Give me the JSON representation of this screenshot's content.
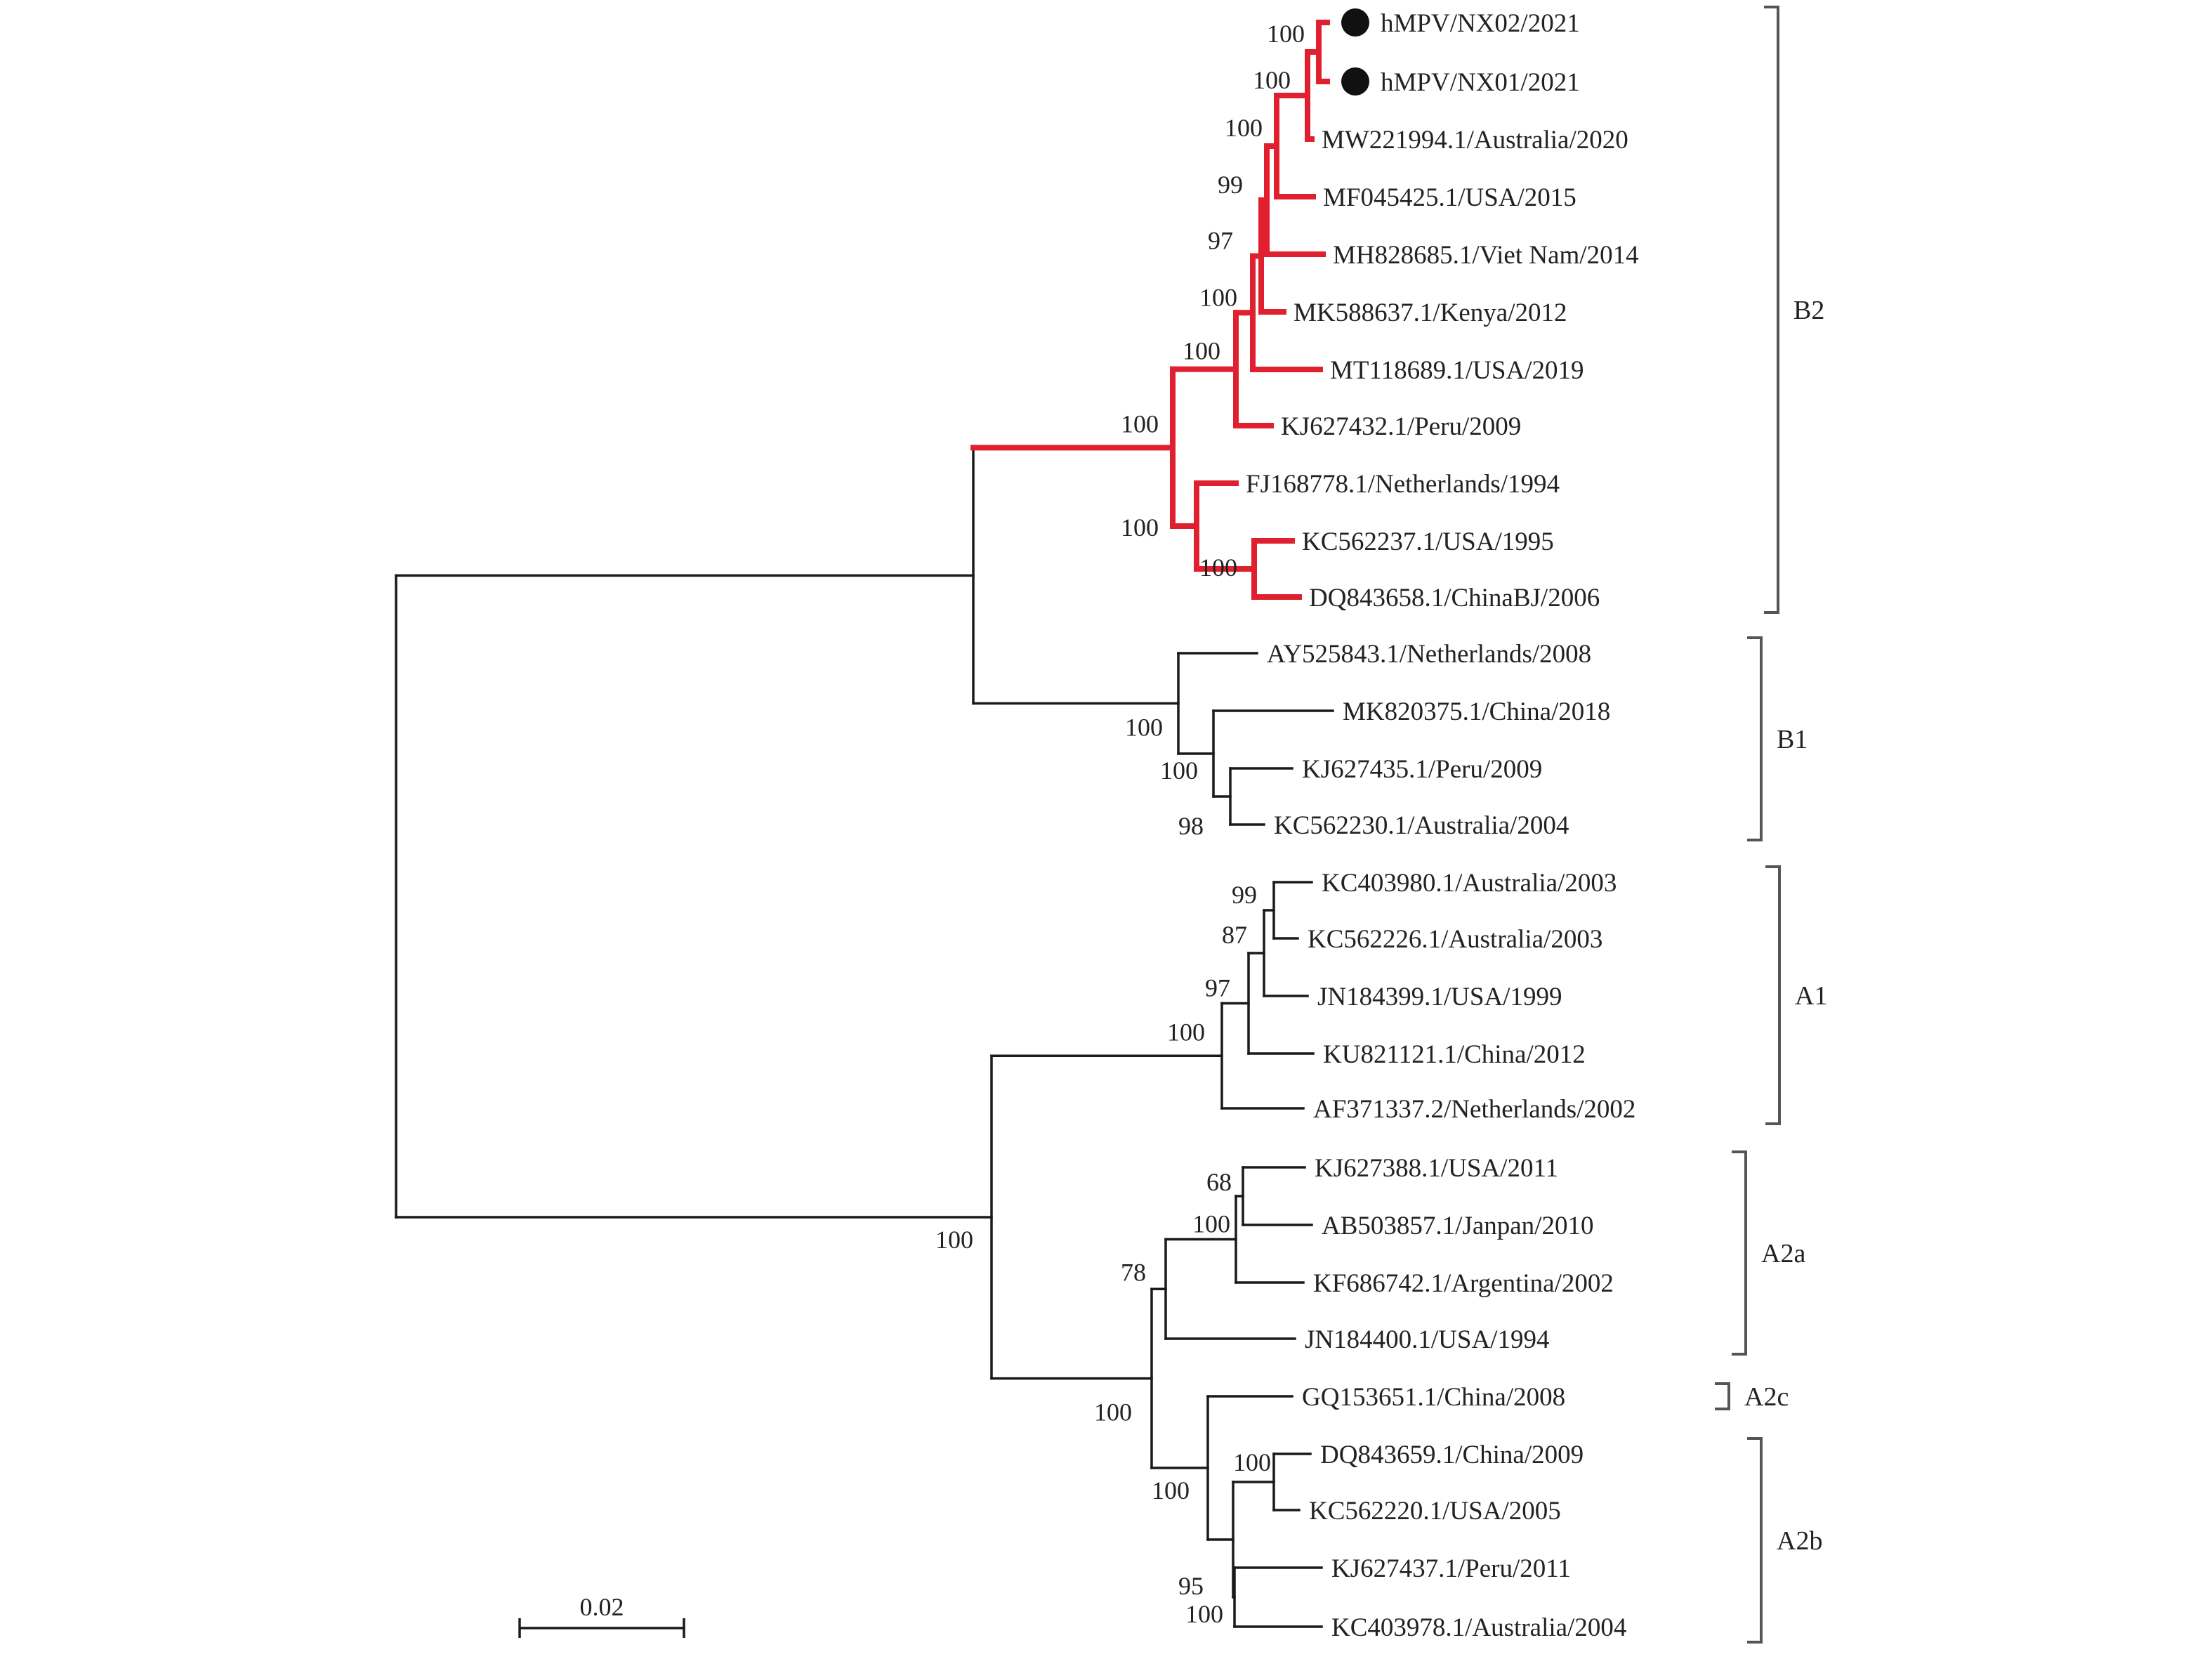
{
  "colors": {
    "highlight": "#e0202e",
    "branch": "#1a1a1a",
    "bracket": "#555555",
    "marker": "#111111"
  },
  "leaves": [
    {
      "label": "hMPV/NX02/2021",
      "marker": true,
      "highlight": true
    },
    {
      "label": "hMPV/NX01/2021",
      "marker": true,
      "highlight": true
    },
    {
      "label": "MW221994.1/Australia/2020",
      "highlight": true
    },
    {
      "label": "MF045425.1/USA/2015",
      "highlight": true
    },
    {
      "label": "MH828685.1/Viet Nam/2014",
      "highlight": true
    },
    {
      "label": "MK588637.1/Kenya/2012",
      "highlight": true
    },
    {
      "label": "MT118689.1/USA/2019",
      "highlight": true
    },
    {
      "label": "KJ627432.1/Peru/2009",
      "highlight": true
    },
    {
      "label": "FJ168778.1/Netherlands/1994",
      "highlight": true
    },
    {
      "label": "KC562237.1/USA/1995",
      "highlight": true
    },
    {
      "label": "DQ843658.1/ChinaBJ/2006",
      "highlight": true
    },
    {
      "label": "AY525843.1/Netherlands/2008"
    },
    {
      "label": "MK820375.1/China/2018"
    },
    {
      "label": "KJ627435.1/Peru/2009"
    },
    {
      "label": "KC562230.1/Australia/2004"
    },
    {
      "label": "KC403980.1/Australia/2003"
    },
    {
      "label": "KC562226.1/Australia/2003"
    },
    {
      "label": "JN184399.1/USA/1999"
    },
    {
      "label": "KU821121.1/China/2012"
    },
    {
      "label": "AF371337.2/Netherlands/2002"
    },
    {
      "label": "KJ627388.1/USA/2011"
    },
    {
      "label": "AB503857.1/Janpan/2010"
    },
    {
      "label": "KF686742.1/Argentina/2002"
    },
    {
      "label": "JN184400.1/USA/1994"
    },
    {
      "label": "GQ153651.1/China/2008"
    },
    {
      "label": "DQ843659.1/China/2009"
    },
    {
      "label": "KC562220.1/USA/2005"
    },
    {
      "label": "KJ627437.1/Peru/2011"
    },
    {
      "label": "KC403978.1/Australia/2004"
    }
  ],
  "support_values": [
    "100",
    "100",
    "100",
    "99",
    "97",
    "100",
    "100",
    "100",
    "100",
    "100",
    "100",
    "100",
    "98",
    "99",
    "87",
    "97",
    "100",
    "68",
    "100",
    "78",
    "100",
    "100",
    "100",
    "95",
    "100",
    "100"
  ],
  "clades": [
    {
      "label": "B2",
      "first": 0,
      "last": 10
    },
    {
      "label": "B1",
      "first": 11,
      "last": 14
    },
    {
      "label": "A1",
      "first": 15,
      "last": 19
    },
    {
      "label": "A2a",
      "first": 20,
      "last": 23
    },
    {
      "label": "A2c",
      "first": 24,
      "last": 24
    },
    {
      "label": "A2b",
      "first": 25,
      "last": 28
    }
  ],
  "scale_bar": {
    "label": "0.02",
    "value": 0.02
  }
}
